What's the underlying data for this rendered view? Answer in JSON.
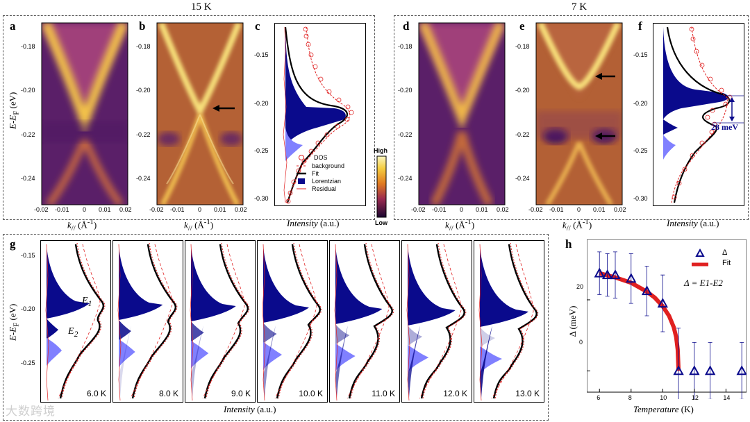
{
  "titles": {
    "left_temp": "15 K",
    "right_temp": "7 K"
  },
  "panel_letters": [
    "a",
    "b",
    "c",
    "d",
    "e",
    "f",
    "g",
    "h"
  ],
  "axis": {
    "energy_label": "E-E",
    "energy_sub": "F",
    "energy_unit": " (eV)",
    "k_label": "k",
    "k_sub": "//",
    "k_unit": " (Å",
    "k_sup": "-1",
    "k_close": ")",
    "intensity_label": "Intensity",
    "intensity_unit": " (a.u.)",
    "map_yticks": [
      "-0.18",
      "-0.20",
      "-0.22",
      "-0.24"
    ],
    "map_xticks": [
      "-0.02",
      "-0.01",
      "0",
      "0.01",
      "0.02"
    ],
    "edc_yticks": [
      "-0.15",
      "-0.20",
      "-0.25",
      "-0.30"
    ],
    "g_yticks": [
      "-0.15",
      "-0.20",
      "-0.25"
    ]
  },
  "colorbar": {
    "high": "High",
    "low": "Low"
  },
  "legend_c": [
    "DOS",
    "background",
    "Fit",
    "Lorentzian",
    "Residual"
  ],
  "gap_annotation": "28 meV",
  "g_labels": {
    "e1": "E",
    "e1_sub": "1",
    "e2": "E",
    "e2_sub": "2"
  },
  "g_temps": [
    "6.0 K",
    "8.0 K",
    "9.0 K",
    "10.0 K",
    "11.0 K",
    "12.0 K",
    "13.0 K"
  ],
  "panel_h": {
    "legend_delta": "Δ",
    "legend_fit": "Fit",
    "formula": "Δ = E1-E2",
    "xlabel": "Temperature",
    "xunit": " (K)",
    "ylabel": "Δ (meV)",
    "xticks": [
      "6",
      "8",
      "10",
      "12",
      "14"
    ],
    "yticks": [
      "0",
      "20"
    ]
  },
  "chart_data": {
    "type": "scatter",
    "title": "",
    "xlabel": "Temperature (K)",
    "ylabel": "Δ (meV)",
    "xlim": [
      5.2,
      15.3
    ],
    "ylim": [
      -6,
      37
    ],
    "series": [
      {
        "name": "Δ",
        "x": [
          6,
          6.5,
          7,
          8,
          9,
          10,
          11,
          12,
          13,
          15
        ],
        "y": [
          27.5,
          27,
          27,
          26,
          22.5,
          19,
          0,
          0,
          0,
          0
        ],
        "err": [
          6,
          6,
          6.5,
          7,
          7,
          8,
          12,
          8,
          8,
          8
        ]
      },
      {
        "name": "Fit",
        "x": [
          6,
          7,
          8,
          9,
          9.5,
          10,
          10.4,
          10.7,
          10.85,
          10.95,
          11
        ],
        "y": [
          27.5,
          26.3,
          24.8,
          22.3,
          20.6,
          18.2,
          15.5,
          12.3,
          9.5,
          6,
          0
        ]
      }
    ]
  },
  "colors": {
    "navy": "#0a0a8c",
    "light_blue": "#8080ff",
    "red": "#e02020"
  },
  "watermark": "大数跨境"
}
